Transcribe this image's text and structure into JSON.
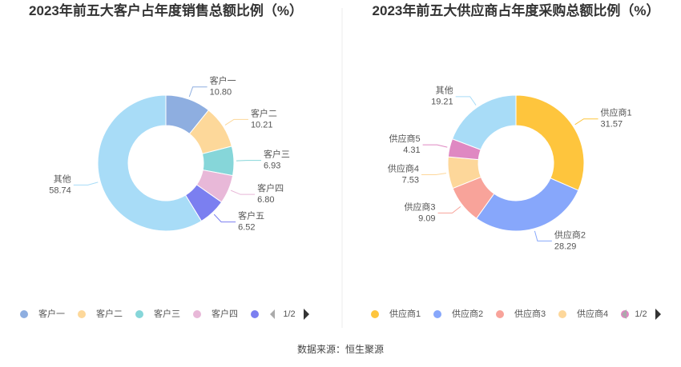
{
  "chart_data": [
    {
      "type": "pie",
      "title": "2023年前五大客户占年度销售总额比例（%）",
      "categories": [
        "客户一",
        "客户二",
        "客户三",
        "客户四",
        "客户五",
        "其他"
      ],
      "values": [
        10.8,
        10.21,
        6.93,
        6.8,
        6.52,
        58.74
      ],
      "value_labels": [
        "10.80",
        "10.21",
        "6.93",
        "6.80",
        "6.52",
        "58.74"
      ],
      "colors": [
        "#8eaee0",
        "#fdd89a",
        "#86d6d9",
        "#e8b8d8",
        "#7b7ff0",
        "#a8dcf7"
      ],
      "legend_page": "1/2"
    },
    {
      "type": "pie",
      "title": "2023年前五大供应商占年度采购总额比例（%）",
      "categories": [
        "供应商1",
        "供应商2",
        "供应商3",
        "供应商4",
        "供应商5",
        "其他"
      ],
      "values": [
        31.57,
        28.29,
        9.09,
        7.53,
        4.31,
        19.21
      ],
      "colors": [
        "#fec53d",
        "#87a7fb",
        "#f8a39a",
        "#fdd79a",
        "#df88c2",
        "#a8dcf7"
      ],
      "legend_page": "1/2"
    }
  ],
  "source": "数据来源：恒生聚源"
}
